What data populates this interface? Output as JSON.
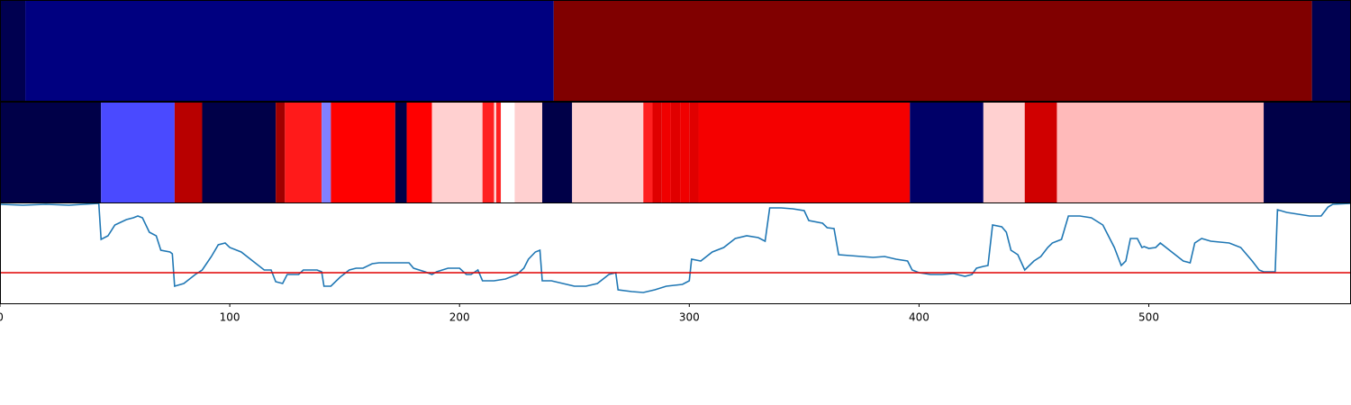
{
  "chart_data": {
    "type": "line",
    "xlim": [
      0,
      588
    ],
    "xticks": [
      0,
      100,
      200,
      300,
      400,
      500
    ],
    "ylim": [
      0,
      111
    ],
    "strips": [
      {
        "segments": [
          {
            "start": 0,
            "end": 11,
            "color": "#000050"
          },
          {
            "start": 11,
            "end": 241,
            "color": "#000080"
          },
          {
            "start": 241,
            "end": 571,
            "color": "#800000"
          },
          {
            "start": 571,
            "end": 588,
            "color": "#000050"
          }
        ]
      },
      {
        "segments": [
          {
            "start": 0,
            "end": 44,
            "color": "#000048"
          },
          {
            "start": 44,
            "end": 76,
            "color": "#4a4aff"
          },
          {
            "start": 76,
            "end": 88,
            "color": "#b80000"
          },
          {
            "start": 88,
            "end": 120,
            "color": "#000048"
          },
          {
            "start": 120,
            "end": 124,
            "color": "#a00000"
          },
          {
            "start": 124,
            "end": 140,
            "color": "#ff1a1a"
          },
          {
            "start": 140,
            "end": 144,
            "color": "#8080ff"
          },
          {
            "start": 144,
            "end": 172,
            "color": "#ff0000"
          },
          {
            "start": 172,
            "end": 177,
            "color": "#000048"
          },
          {
            "start": 177,
            "end": 188,
            "color": "#ff0000"
          },
          {
            "start": 188,
            "end": 210,
            "color": "#ffd0d0"
          },
          {
            "start": 210,
            "end": 215,
            "color": "#ff2020"
          },
          {
            "start": 215,
            "end": 216,
            "color": "#ffd0d0"
          },
          {
            "start": 216,
            "end": 218,
            "color": "#ff2020"
          },
          {
            "start": 218,
            "end": 224,
            "color": "#ffffff"
          },
          {
            "start": 224,
            "end": 236,
            "color": "#ffd0d0"
          },
          {
            "start": 236,
            "end": 249,
            "color": "#000048"
          },
          {
            "start": 249,
            "end": 280,
            "color": "#ffd0d0"
          },
          {
            "start": 280,
            "end": 284,
            "color": "#ff2020"
          },
          {
            "start": 284,
            "end": 288,
            "color": "#e00000"
          },
          {
            "start": 288,
            "end": 292,
            "color": "#f00000"
          },
          {
            "start": 292,
            "end": 296,
            "color": "#e00000"
          },
          {
            "start": 296,
            "end": 300,
            "color": "#f00000"
          },
          {
            "start": 300,
            "end": 304,
            "color": "#e00000"
          },
          {
            "start": 304,
            "end": 396,
            "color": "#f50000"
          },
          {
            "start": 396,
            "end": 428,
            "color": "#000068"
          },
          {
            "start": 428,
            "end": 446,
            "color": "#ffd0d0"
          },
          {
            "start": 446,
            "end": 460,
            "color": "#d00000"
          },
          {
            "start": 460,
            "end": 550,
            "color": "#ffbaba"
          },
          {
            "start": 550,
            "end": 588,
            "color": "#000048"
          }
        ]
      }
    ],
    "hline": {
      "value": 34,
      "color": "#e00000"
    },
    "series": [
      {
        "color": "#1f77b4",
        "x": [
          0,
          10,
          20,
          30,
          43,
          44,
          47,
          50,
          55,
          58,
          60,
          62,
          65,
          68,
          70,
          74,
          75,
          76,
          80,
          85,
          88,
          92,
          95,
          98,
          100,
          105,
          110,
          115,
          118,
          120,
          123,
          125,
          130,
          132,
          138,
          140,
          141,
          144,
          148,
          152,
          155,
          158,
          162,
          165,
          170,
          178,
          180,
          185,
          188,
          190,
          195,
          200,
          203,
          205,
          208,
          210,
          215,
          220,
          225,
          228,
          230,
          233,
          235,
          236,
          240,
          245,
          250,
          255,
          260,
          265,
          268,
          269,
          275,
          280,
          285,
          290,
          297,
          300,
          301,
          305,
          310,
          315,
          320,
          325,
          330,
          333,
          335,
          340,
          345,
          350,
          352,
          358,
          360,
          363,
          365,
          370,
          375,
          380,
          385,
          390,
          395,
          397,
          400,
          405,
          410,
          415,
          420,
          423,
          425,
          428,
          430,
          432,
          436,
          438,
          440,
          443,
          446,
          450,
          453,
          456,
          458,
          460,
          462,
          465,
          470,
          475,
          480,
          485,
          488,
          490,
          492,
          495,
          497,
          498,
          500,
          503,
          505,
          510,
          515,
          518,
          520,
          523,
          527,
          535,
          540,
          545,
          548,
          550,
          555,
          556,
          560,
          565,
          570,
          575,
          578,
          580,
          588
        ],
        "values": [
          110,
          109,
          110,
          109,
          111,
          71,
          75,
          87,
          93,
          95,
          97,
          95,
          79,
          75,
          59,
          57,
          55,
          19,
          22,
          32,
          37,
          52,
          65,
          67,
          62,
          57,
          47,
          37,
          37,
          24,
          22,
          32,
          32,
          37,
          37,
          35,
          19,
          19,
          29,
          37,
          39,
          39,
          44,
          45,
          45,
          45,
          39,
          35,
          32,
          35,
          39,
          39,
          32,
          32,
          37,
          25,
          25,
          27,
          32,
          39,
          49,
          57,
          59,
          25,
          25,
          22,
          19,
          19,
          22,
          32,
          34,
          15,
          13,
          12,
          15,
          19,
          21,
          25,
          49,
          47,
          57,
          62,
          72,
          75,
          73,
          69,
          106,
          106,
          105,
          103,
          92,
          89,
          84,
          83,
          54,
          53,
          52,
          51,
          52,
          49,
          47,
          37,
          34,
          32,
          32,
          33,
          30,
          32,
          39,
          41,
          42,
          87,
          85,
          79,
          59,
          54,
          37,
          47,
          52,
          62,
          67,
          69,
          71,
          97,
          97,
          95,
          87,
          62,
          42,
          47,
          72,
          72,
          62,
          63,
          61,
          62,
          67,
          57,
          47,
          45,
          67,
          72,
          69,
          67,
          62,
          47,
          37,
          35,
          35,
          104,
          101,
          99,
          97,
          97,
          107,
          110,
          111
        ]
      }
    ]
  }
}
